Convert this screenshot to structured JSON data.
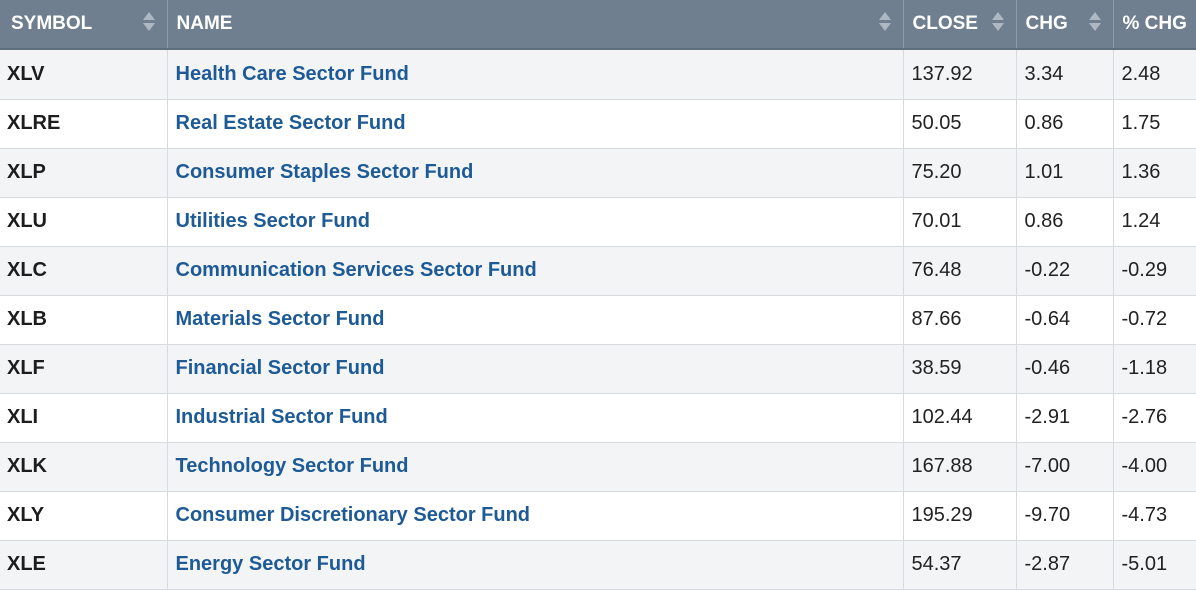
{
  "headers": {
    "symbol": "SYMBOL",
    "name": "NAME",
    "close": "CLOSE",
    "chg": "CHG",
    "pct_chg": "% CHG"
  },
  "rows": [
    {
      "symbol": "XLV",
      "name": "Health Care Sector Fund",
      "close": "137.92",
      "chg": "3.34",
      "pct": "2.48"
    },
    {
      "symbol": "XLRE",
      "name": "Real Estate Sector Fund",
      "close": "50.05",
      "chg": "0.86",
      "pct": "1.75"
    },
    {
      "symbol": "XLP",
      "name": "Consumer Staples Sector Fund",
      "close": "75.20",
      "chg": "1.01",
      "pct": "1.36"
    },
    {
      "symbol": "XLU",
      "name": "Utilities Sector Fund",
      "close": "70.01",
      "chg": "0.86",
      "pct": "1.24"
    },
    {
      "symbol": "XLC",
      "name": "Communication Services Sector Fund",
      "close": "76.48",
      "chg": "-0.22",
      "pct": "-0.29"
    },
    {
      "symbol": "XLB",
      "name": "Materials Sector Fund",
      "close": "87.66",
      "chg": "-0.64",
      "pct": "-0.72"
    },
    {
      "symbol": "XLF",
      "name": "Financial Sector Fund",
      "close": "38.59",
      "chg": "-0.46",
      "pct": "-1.18"
    },
    {
      "symbol": "XLI",
      "name": "Industrial Sector Fund",
      "close": "102.44",
      "chg": "-2.91",
      "pct": "-2.76"
    },
    {
      "symbol": "XLK",
      "name": "Technology Sector Fund",
      "close": "167.88",
      "chg": "-7.00",
      "pct": "-4.00"
    },
    {
      "symbol": "XLY",
      "name": "Consumer Discretionary Sector Fund",
      "close": "195.29",
      "chg": "-9.70",
      "pct": "-4.73"
    },
    {
      "symbol": "XLE",
      "name": "Energy Sector Fund",
      "close": "54.37",
      "chg": "-2.87",
      "pct": "-5.01"
    }
  ],
  "colors": {
    "header_bg": "#6f7f90",
    "link": "#1d5a96",
    "row_alt": "#f2f4f6"
  }
}
